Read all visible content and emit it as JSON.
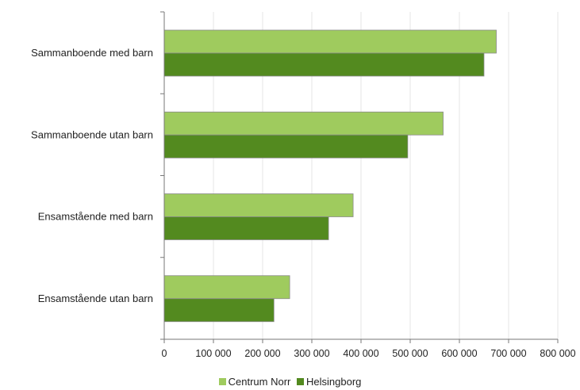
{
  "chart_data": {
    "type": "bar",
    "orientation": "horizontal",
    "categories": [
      "Sammanboende med barn",
      "Sammanboende utan barn",
      "Ensamstående med barn",
      "Ensamstående utan barn"
    ],
    "series": [
      {
        "name": "Centrum Norr",
        "color": "#9fcb5e",
        "values": [
          675000,
          567000,
          384000,
          255000
        ]
      },
      {
        "name": "Helsingborg",
        "color": "#538a1f",
        "values": [
          650000,
          495000,
          334000,
          223000
        ]
      }
    ],
    "xlim": [
      0,
      800000
    ],
    "xticks": [
      0,
      100000,
      200000,
      300000,
      400000,
      500000,
      600000,
      700000,
      800000
    ],
    "xtick_labels": [
      "0",
      "100 000",
      "200 000",
      "300 000",
      "400 000",
      "500 000",
      "600 000",
      "700 000",
      "800 000"
    ],
    "grid": "vertical",
    "legend_position": "bottom"
  }
}
